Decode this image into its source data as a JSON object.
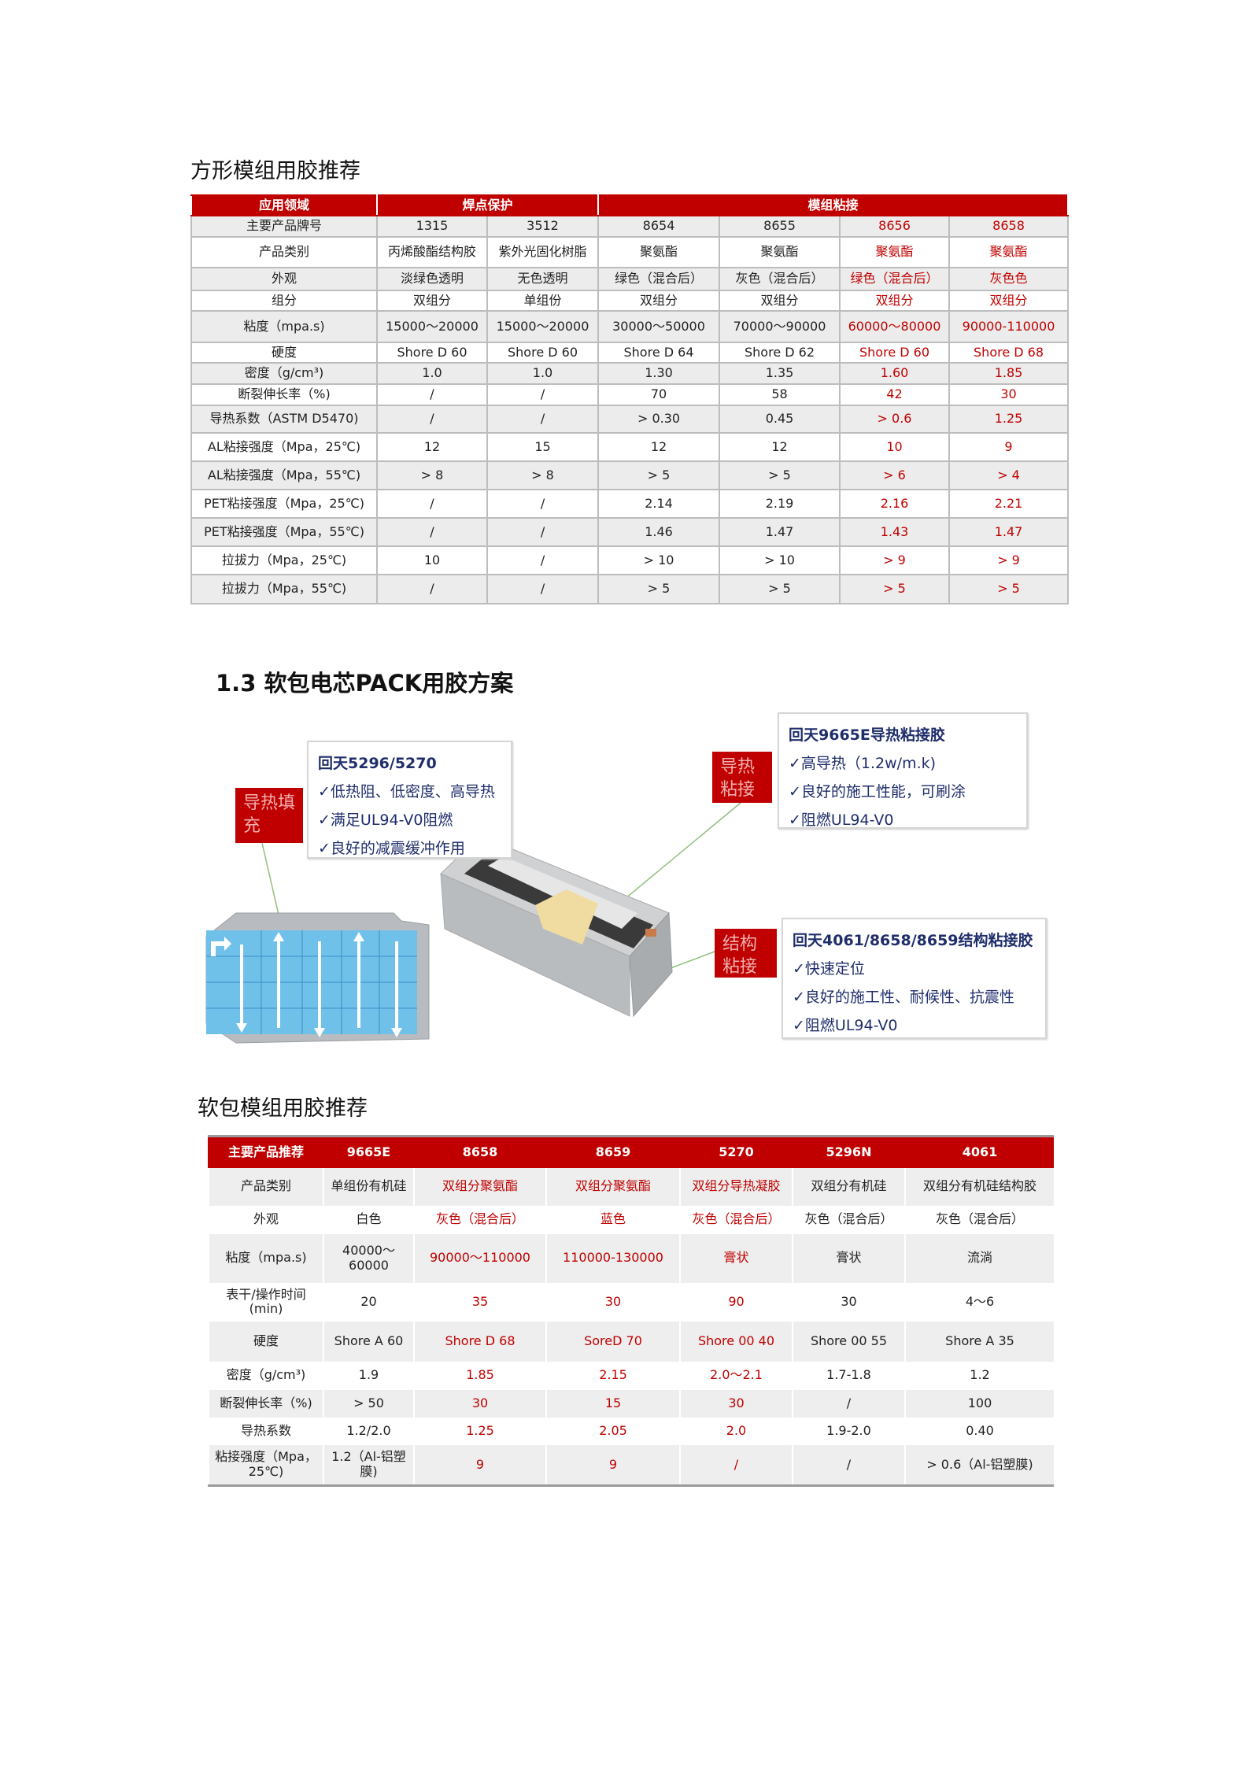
{
  "section1": {
    "title": "方形模组用胶推荐",
    "table": {
      "header": [
        {
          "label": "应用领域",
          "span": 1
        },
        {
          "label": "焊点保护",
          "span": 2
        },
        {
          "label": "模组粘接",
          "span": 4
        }
      ],
      "highlight_columns": [
        5,
        6
      ],
      "rows": [
        [
          "主要产品牌号",
          "1315",
          "3512",
          "8654",
          "8655",
          "8656",
          "8658"
        ],
        [
          "产品类别",
          "丙烯酸酯结构胶",
          "紫外光固化树脂",
          "聚氨酯",
          "聚氨酯",
          "聚氨酯",
          "聚氨酯"
        ],
        [
          "外观",
          "淡绿色透明",
          "无色透明",
          "绿色（混合后）",
          "灰色（混合后）",
          "绿色（混合后）",
          "灰色色"
        ],
        [
          "组分",
          "双组分",
          "单组份",
          "双组分",
          "双组分",
          "双组分",
          "双组分"
        ],
        [
          "粘度（mpa.s)",
          "15000～20000",
          "15000～20000",
          "30000～50000",
          "70000～90000",
          "60000～80000",
          "90000-110000"
        ],
        [
          "硬度",
          "Shore D 60",
          "Shore D 60",
          "Shore D 64",
          "Shore D 62",
          "Shore D 60",
          "Shore D 68"
        ],
        [
          "密度（g/cm³)",
          "1.0",
          "1.0",
          "1.30",
          "1.35",
          "1.60",
          "1.85"
        ],
        [
          "断裂伸长率（%)",
          "/",
          "/",
          "70",
          "58",
          "42",
          "30"
        ],
        [
          "导热系数（ASTM D5470)",
          "/",
          "/",
          "> 0.30",
          "0.45",
          "> 0.6",
          "1.25"
        ],
        [
          "AL粘接强度（Mpa，25℃)",
          "12",
          "15",
          "12",
          "12",
          "10",
          "9"
        ],
        [
          "AL粘接强度（Mpa，55℃)",
          "> 8",
          "> 8",
          "> 5",
          "> 5",
          "> 6",
          "> 4"
        ],
        [
          "PET粘接强度（Mpa，25℃)",
          "/",
          "/",
          "2.14",
          "2.19",
          "2.16",
          "2.21"
        ],
        [
          "PET粘接强度（Mpa，55℃)",
          "/",
          "/",
          "1.46",
          "1.47",
          "1.43",
          "1.47"
        ],
        [
          "拉拔力（Mpa，25℃)",
          "10",
          "/",
          "> 10",
          "> 10",
          "> 9",
          "> 9"
        ],
        [
          "拉拔力（Mpa，55℃)",
          "/",
          "/",
          "> 5",
          "> 5",
          "> 5",
          "> 5"
        ]
      ]
    }
  },
  "section2": {
    "title": "1.3 软包电芯PACK用胶方案",
    "callouts": [
      {
        "tag": "导热填充",
        "title": "回天5296/5270",
        "items": [
          "✓低热阻、低密度、高导热",
          "✓满足UL94-V0阻燃",
          "✓良好的减震缓冲作用"
        ]
      },
      {
        "tag": "导热粘接",
        "title": "回天9665E导热粘接胶",
        "items": [
          "✓高导热（1.2w/m.k)",
          "✓良好的施工性能，可刷涂",
          "✓阻燃UL94-V0"
        ]
      },
      {
        "tag": "结构粘接",
        "title": "回天4061/8658/8659结构粘接胶",
        "items": [
          "✓快速定位",
          "✓良好的施工性、耐候性、抗震性",
          "✓阻燃UL94-V0"
        ]
      }
    ]
  },
  "section3": {
    "title": "软包模组用胶推荐",
    "table": {
      "header": [
        "主要产品推荐",
        "9665E",
        "8658",
        "8659",
        "5270",
        "5296N",
        "4061"
      ],
      "highlight_columns": [
        2,
        3,
        4
      ],
      "rows": [
        [
          "产品类别",
          "单组份有机硅",
          "双组分聚氨酯",
          "双组分聚氨酯",
          "双组分导热凝胶",
          "双组分有机硅",
          "双组分有机硅结构胶"
        ],
        [
          "外观",
          "白色",
          "灰色（混合后）",
          "蓝色",
          "灰色（混合后）",
          "灰色（混合后）",
          "灰色（混合后）"
        ],
        [
          "粘度（mpa.s)",
          "40000～60000",
          "90000～110000",
          "110000-130000",
          "膏状",
          "膏状",
          "流淌"
        ],
        [
          "表干/操作时间(min)",
          "20",
          "35",
          "30",
          "90",
          "30",
          "4～6"
        ],
        [
          "硬度",
          "Shore A 60",
          "Shore D 68",
          "SoreD 70",
          "Shore 00 40",
          "Shore 00 55",
          "Shore A 35"
        ],
        [
          "密度（g/cm³)",
          "1.9",
          "1.85",
          "2.15",
          "2.0～2.1",
          "1.7-1.8",
          "1.2"
        ],
        [
          "断裂伸长率（%)",
          "> 50",
          "30",
          "15",
          "30",
          "/",
          "100"
        ],
        [
          "导热系数",
          "1.2/2.0",
          "1.25",
          "2.05",
          "2.0",
          "1.9-2.0",
          "0.40"
        ],
        [
          "粘接强度（Mpa，25℃)",
          "1.2（Al-铝塑膜)",
          "9",
          "9",
          "/",
          "/",
          "> 0.6（Al-铝塑膜)"
        ]
      ]
    }
  },
  "colors": {
    "accent": "#c00000",
    "callout_text": "#1f2d6b",
    "leader_line": "#8fc07a"
  }
}
